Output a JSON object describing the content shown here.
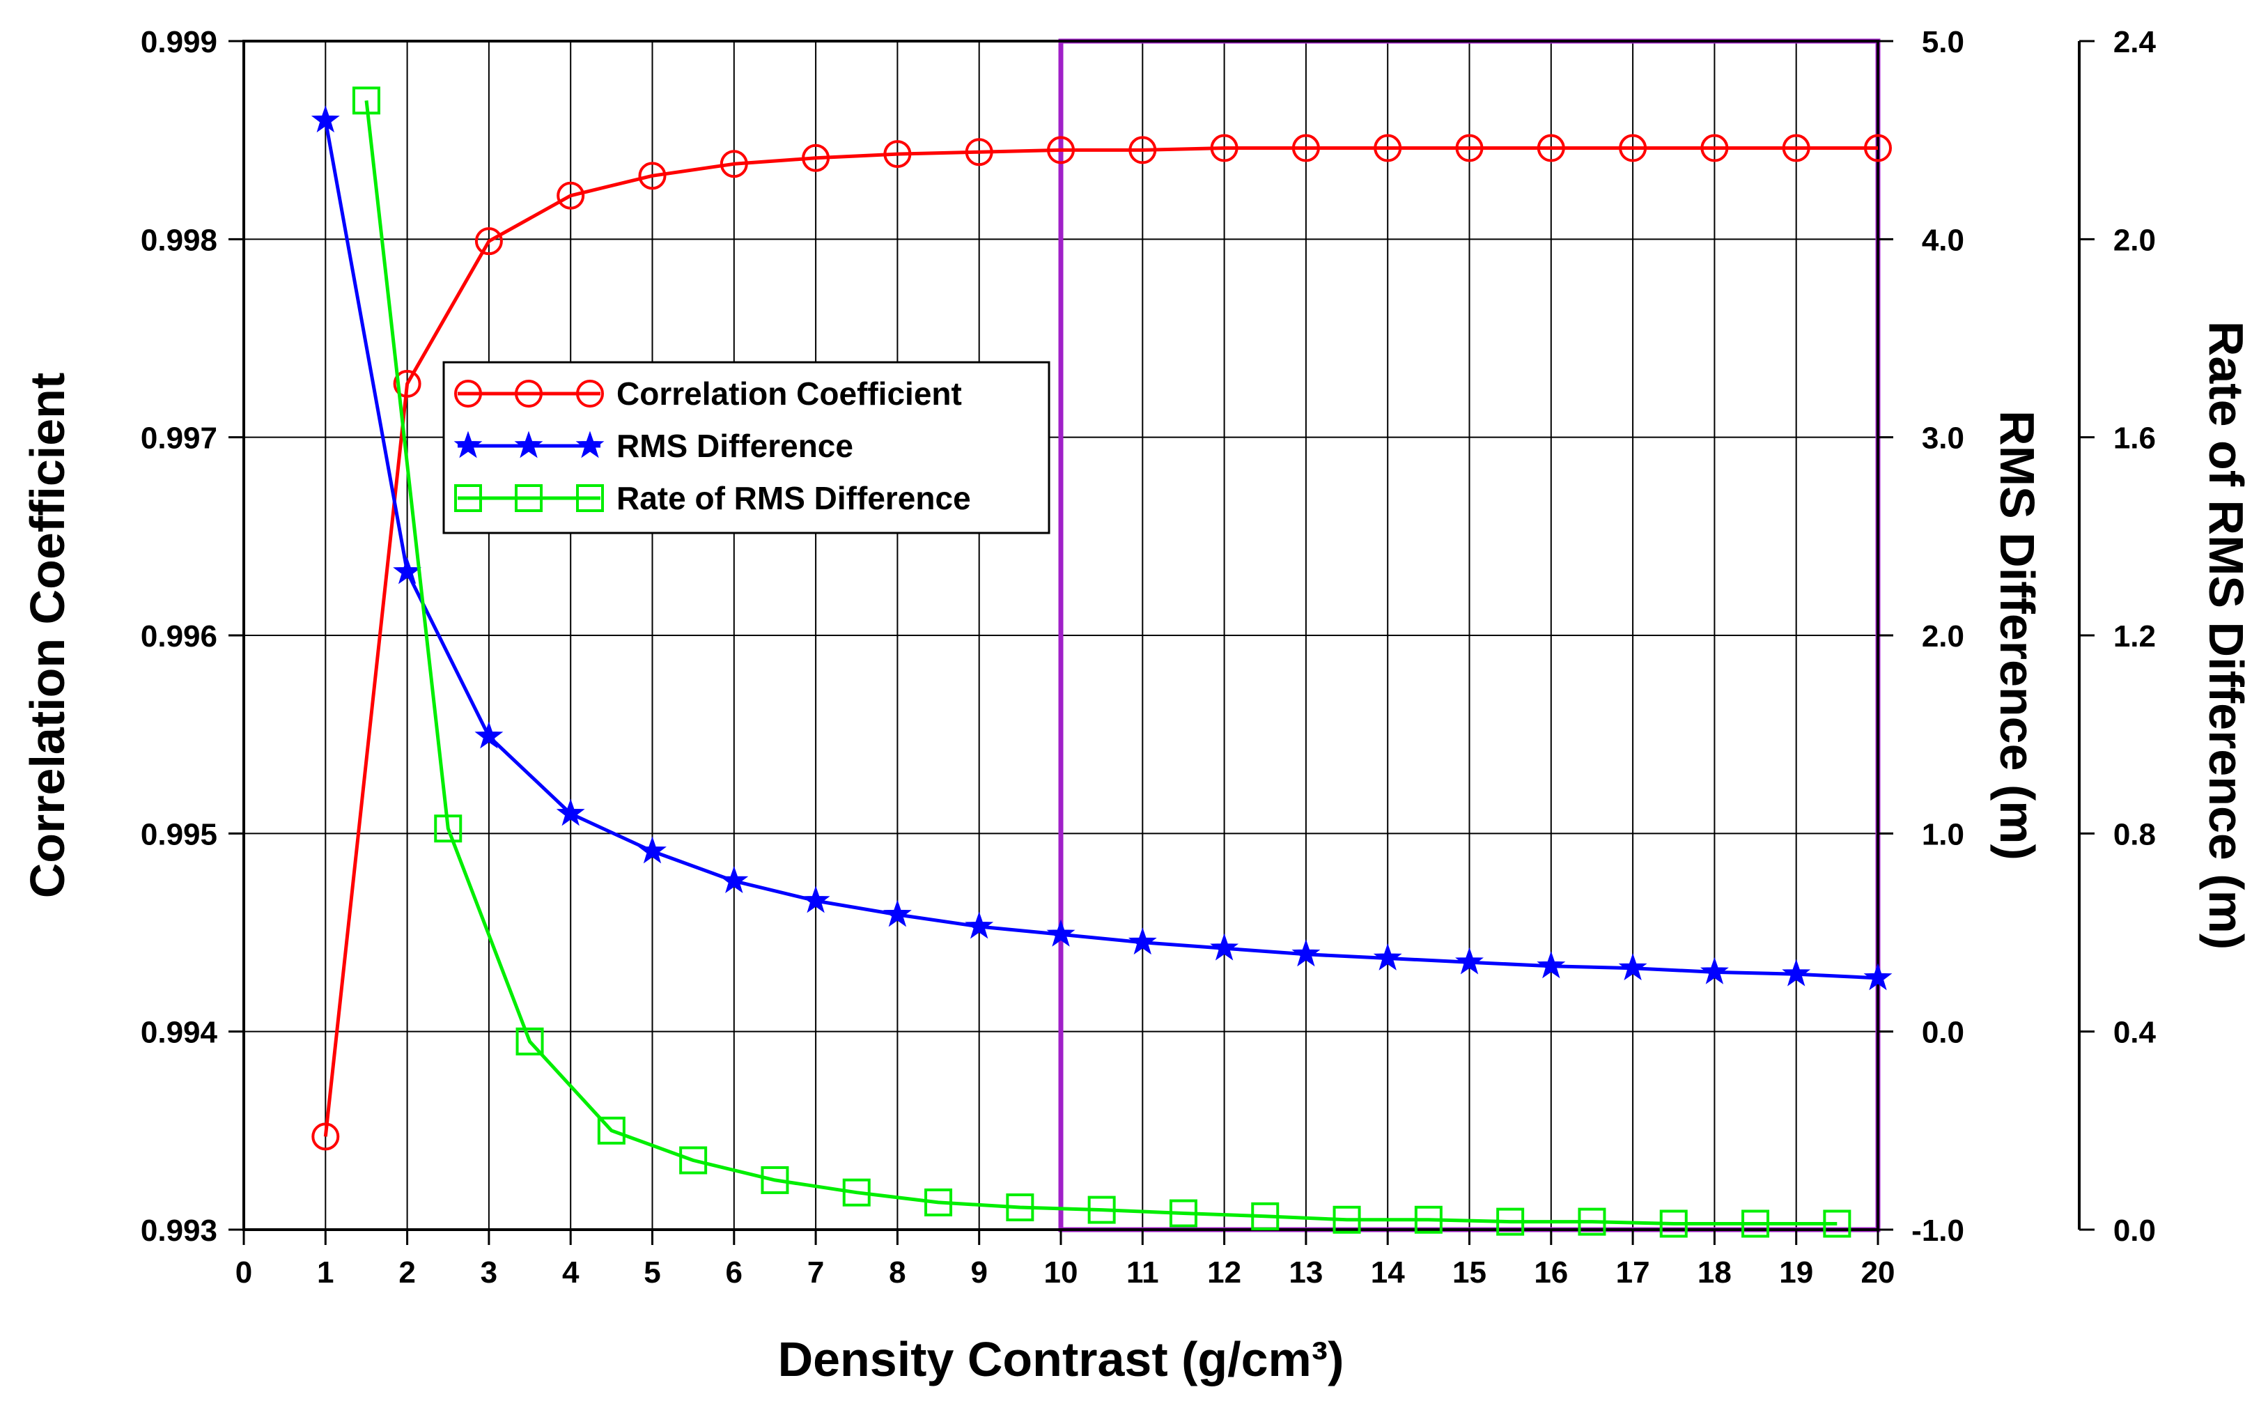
{
  "chart_data": {
    "type": "line",
    "xlabel": "Density Contrast (g/cm³)",
    "ylabel_left": "Correlation Coefficient",
    "ylabel_right1": "RMS Difference (m)",
    "ylabel_right2": "Rate of RMS Difference (m)",
    "x_ticks": [
      "0",
      "1",
      "2",
      "3",
      "4",
      "5",
      "6",
      "7",
      "8",
      "9",
      "10",
      "11",
      "12",
      "13",
      "14",
      "15",
      "16",
      "17",
      "18",
      "19",
      "20"
    ],
    "xlim": [
      0,
      20
    ],
    "y_left_ticks": [
      "0.993",
      "0.994",
      "0.995",
      "0.996",
      "0.997",
      "0.998",
      "0.999"
    ],
    "ylim_left": [
      0.993,
      0.999
    ],
    "y_right1_ticks": [
      "-1.0",
      "0.0",
      "1.0",
      "2.0",
      "3.0",
      "4.0",
      "5.0"
    ],
    "ylim_right1": [
      -1.0,
      5.0
    ],
    "y_right2_ticks": [
      "0.0",
      "0.4",
      "0.8",
      "1.2",
      "1.6",
      "2.0",
      "2.4"
    ],
    "ylim_right2": [
      0.0,
      2.4
    ],
    "grid": true,
    "highlight_region": {
      "x_range": [
        10,
        20
      ],
      "color": "#A020C8"
    },
    "series": [
      {
        "name": "Correlation Coefficient",
        "axis": "left",
        "color": "#FF0000",
        "marker": "circle",
        "x": [
          1,
          2,
          3,
          4,
          5,
          6,
          7,
          8,
          9,
          10,
          11,
          12,
          13,
          14,
          15,
          16,
          17,
          18,
          19,
          20
        ],
        "values": [
          0.99347,
          0.99727,
          0.99799,
          0.99822,
          0.99832,
          0.99838,
          0.99841,
          0.99843,
          0.99844,
          0.99845,
          0.99845,
          0.99846,
          0.99846,
          0.99846,
          0.99846,
          0.99846,
          0.99846,
          0.99846,
          0.99846,
          0.99846
        ]
      },
      {
        "name": "RMS Difference",
        "axis": "right1",
        "color": "#0000FF",
        "marker": "star",
        "x": [
          1,
          2,
          3,
          4,
          5,
          6,
          7,
          8,
          9,
          10,
          11,
          12,
          13,
          14,
          15,
          16,
          17,
          18,
          19,
          20
        ],
        "values": [
          4.6,
          2.32,
          1.49,
          1.1,
          0.91,
          0.76,
          0.66,
          0.59,
          0.53,
          0.49,
          0.45,
          0.42,
          0.39,
          0.37,
          0.35,
          0.33,
          0.32,
          0.3,
          0.29,
          0.27
        ]
      },
      {
        "name": "Rate of RMS Difference",
        "axis": "right2",
        "color": "#00EE00",
        "marker": "square",
        "x": [
          1.5,
          2.5,
          3.5,
          4.5,
          5.5,
          6.5,
          7.5,
          8.5,
          9.5,
          10.5,
          11.5,
          12.5,
          13.5,
          14.5,
          15.5,
          16.5,
          17.5,
          18.5,
          19.5
        ],
        "values": [
          2.28,
          0.81,
          0.38,
          0.2,
          0.14,
          0.1,
          0.075,
          0.055,
          0.045,
          0.04,
          0.033,
          0.027,
          0.02,
          0.02,
          0.016,
          0.016,
          0.012,
          0.012,
          0.012
        ]
      }
    ]
  }
}
